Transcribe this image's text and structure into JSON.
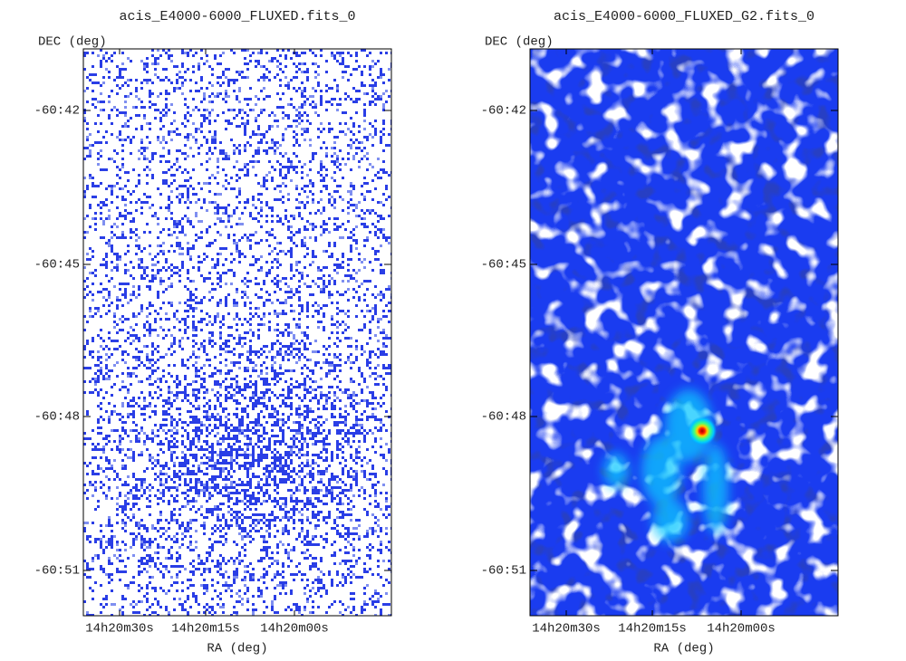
{
  "panels": [
    {
      "title": "acis_E4000-6000_FLUXED.fits_0",
      "y_label": "DEC (deg)",
      "x_label": "RA (deg)",
      "y_ticks": [
        "-60:42",
        "-60:45",
        "-60:48",
        "-60:51"
      ],
      "x_ticks": [
        "14h20m30s",
        "14h20m15s",
        "14h20m00s"
      ]
    },
    {
      "title": "acis_E4000-6000_FLUXED_G2.fits_0",
      "y_label": "DEC (deg)",
      "x_label": "RA (deg)",
      "y_ticks": [
        "-60:42",
        "-60:45",
        "-60:48",
        "-60:51"
      ],
      "x_ticks": [
        "14h20m30s",
        "14h20m15s",
        "14h20m00s"
      ]
    }
  ]
}
